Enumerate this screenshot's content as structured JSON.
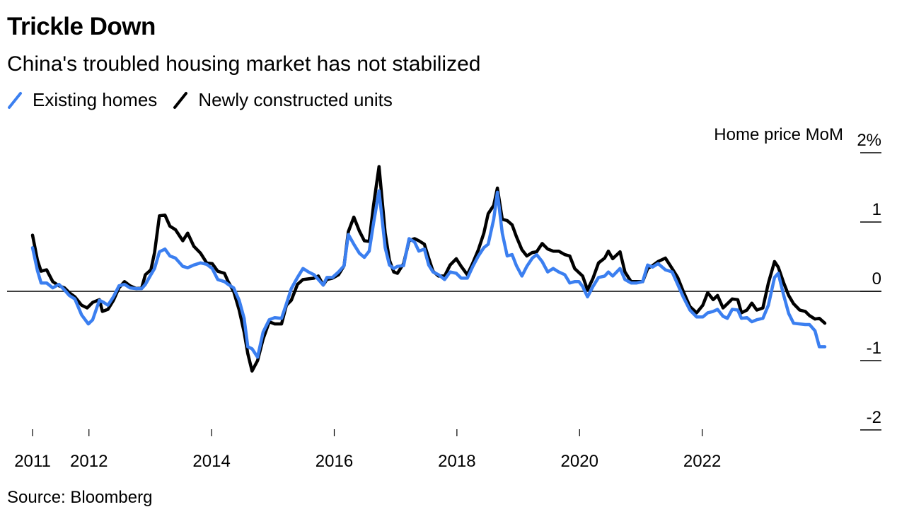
{
  "header": {
    "title": "Trickle Down",
    "subtitle": "China's troubled housing market has not stabilized"
  },
  "legend": [
    {
      "label": "Existing homes",
      "color": "#3b7ff0"
    },
    {
      "label": "Newly constructed units",
      "color": "#000000"
    }
  ],
  "footer": {
    "source": "Source: Bloomberg"
  },
  "chart_data": {
    "type": "line",
    "title": "Trickle Down",
    "subtitle": "China's troubled housing market has not stabilized",
    "ylabel": "Home price MoM",
    "y_unit_label": "Home price MoM 2%",
    "xlabel": "",
    "ylim": [
      -2,
      2
    ],
    "xlim": [
      2011.08,
      2024.0
    ],
    "y_ticks": [
      {
        "value": 2,
        "label": "2%"
      },
      {
        "value": 1,
        "label": "1"
      },
      {
        "value": 0,
        "label": "0"
      },
      {
        "value": -1,
        "label": "-1"
      },
      {
        "value": -2,
        "label": "-2"
      }
    ],
    "x_ticks": [
      {
        "value": 2011.08,
        "label": "2011"
      },
      {
        "value": 2012.0,
        "label": "2012"
      },
      {
        "value": 2014.0,
        "label": "2014"
      },
      {
        "value": 2016.0,
        "label": "2016"
      },
      {
        "value": 2018.0,
        "label": "2018"
      },
      {
        "value": 2020.0,
        "label": "2020"
      },
      {
        "value": 2022.0,
        "label": "2022"
      }
    ],
    "zero_line": true,
    "grid": false,
    "legend_position": "top-left",
    "y_axis_position": "right",
    "series": [
      {
        "name": "Existing homes",
        "color": "#3b7ff0",
        "x": [
          2011.08,
          2011.16,
          2011.22,
          2011.31,
          2011.41,
          2011.51,
          2011.6,
          2011.68,
          2011.77,
          2011.88,
          2011.99,
          2012.06,
          2012.17,
          2012.24,
          2012.31,
          2012.4,
          2012.49,
          2012.58,
          2012.67,
          2012.77,
          2012.86,
          2012.92,
          2013.01,
          2013.07,
          2013.15,
          2013.24,
          2013.32,
          2013.41,
          2013.53,
          2013.61,
          2013.71,
          2013.82,
          2013.92,
          2014.01,
          2014.1,
          2014.21,
          2014.27,
          2014.36,
          2014.45,
          2014.53,
          2014.59,
          2014.66,
          2014.75,
          2014.84,
          2014.94,
          2015.03,
          2015.14,
          2015.22,
          2015.3,
          2015.4,
          2015.49,
          2015.58,
          2015.67,
          2015.74,
          2015.82,
          2015.88,
          2015.97,
          2016.07,
          2016.16,
          2016.23,
          2016.32,
          2016.41,
          2016.49,
          2016.57,
          2016.64,
          2016.73,
          2016.83,
          2016.9,
          2016.97,
          2017.03,
          2017.13,
          2017.22,
          2017.31,
          2017.38,
          2017.47,
          2017.54,
          2017.61,
          2017.7,
          2017.8,
          2017.89,
          2017.99,
          2018.07,
          2018.17,
          2018.26,
          2018.35,
          2018.44,
          2018.51,
          2018.6,
          2018.66,
          2018.74,
          2018.82,
          2018.9,
          2018.97,
          2019.06,
          2019.14,
          2019.23,
          2019.3,
          2019.39,
          2019.48,
          2019.57,
          2019.66,
          2019.76,
          2019.84,
          2019.92,
          2019.99,
          2020.05,
          2020.13,
          2020.22,
          2020.31,
          2020.41,
          2020.47,
          2020.54,
          2020.66,
          2020.74,
          2020.84,
          2020.93,
          2021.03,
          2021.11,
          2021.19,
          2021.28,
          2021.4,
          2021.51,
          2021.6,
          2021.69,
          2021.8,
          2021.91,
          2022.01,
          2022.09,
          2022.18,
          2022.25,
          2022.34,
          2022.41,
          2022.49,
          2022.58,
          2022.64,
          2022.73,
          2022.81,
          2022.89,
          2022.99,
          2023.08,
          2023.18,
          2023.24,
          2023.33,
          2023.41,
          2023.49,
          2023.59,
          2023.68,
          2023.75,
          2023.84,
          2023.91,
          2024.0
        ],
        "values": [
          0.63,
          0.3,
          0.12,
          0.12,
          0.05,
          0.1,
          0.02,
          -0.06,
          -0.11,
          -0.34,
          -0.47,
          -0.41,
          -0.13,
          -0.16,
          -0.2,
          -0.08,
          0.08,
          0.1,
          0.05,
          0.04,
          0.04,
          0.1,
          0.24,
          0.33,
          0.57,
          0.61,
          0.51,
          0.48,
          0.36,
          0.34,
          0.38,
          0.41,
          0.39,
          0.33,
          0.17,
          0.14,
          0.1,
          0.05,
          -0.13,
          -0.39,
          -0.8,
          -0.83,
          -0.95,
          -0.59,
          -0.41,
          -0.38,
          -0.39,
          -0.18,
          0.04,
          0.2,
          0.33,
          0.28,
          0.24,
          0.17,
          0.09,
          0.2,
          0.2,
          0.28,
          0.37,
          0.82,
          0.68,
          0.55,
          0.49,
          0.58,
          0.98,
          1.45,
          0.63,
          0.38,
          0.33,
          0.36,
          0.37,
          0.76,
          0.71,
          0.58,
          0.61,
          0.38,
          0.28,
          0.24,
          0.17,
          0.28,
          0.26,
          0.19,
          0.19,
          0.36,
          0.51,
          0.63,
          0.68,
          1.04,
          1.43,
          0.84,
          0.51,
          0.53,
          0.37,
          0.22,
          0.36,
          0.48,
          0.53,
          0.43,
          0.28,
          0.33,
          0.28,
          0.24,
          0.12,
          0.14,
          0.14,
          0.07,
          -0.08,
          0.07,
          0.2,
          0.22,
          0.28,
          0.22,
          0.33,
          0.17,
          0.12,
          0.12,
          0.14,
          0.38,
          0.35,
          0.4,
          0.31,
          0.28,
          0.1,
          -0.08,
          -0.27,
          -0.37,
          -0.37,
          -0.31,
          -0.29,
          -0.26,
          -0.36,
          -0.39,
          -0.26,
          -0.27,
          -0.39,
          -0.38,
          -0.44,
          -0.41,
          -0.39,
          -0.2,
          0.2,
          0.26,
          -0.06,
          -0.32,
          -0.46,
          -0.47,
          -0.48,
          -0.48,
          -0.57,
          -0.8,
          -0.8
        ]
      },
      {
        "name": "Newly constructed units",
        "color": "#000000",
        "x": [
          2011.08,
          2011.16,
          2011.22,
          2011.31,
          2011.41,
          2011.51,
          2011.6,
          2011.68,
          2011.77,
          2011.88,
          2011.97,
          2012.06,
          2012.17,
          2012.22,
          2012.31,
          2012.4,
          2012.49,
          2012.58,
          2012.67,
          2012.77,
          2012.86,
          2012.92,
          2013.01,
          2013.07,
          2013.15,
          2013.24,
          2013.32,
          2013.41,
          2013.53,
          2013.61,
          2013.71,
          2013.82,
          2013.92,
          2014.01,
          2014.1,
          2014.21,
          2014.27,
          2014.36,
          2014.45,
          2014.53,
          2014.59,
          2014.66,
          2014.75,
          2014.84,
          2014.94,
          2015.03,
          2015.14,
          2015.22,
          2015.3,
          2015.4,
          2015.49,
          2015.58,
          2015.67,
          2015.74,
          2015.82,
          2015.88,
          2015.97,
          2016.07,
          2016.16,
          2016.23,
          2016.32,
          2016.41,
          2016.49,
          2016.57,
          2016.64,
          2016.73,
          2016.83,
          2016.9,
          2016.97,
          2017.03,
          2017.13,
          2017.22,
          2017.31,
          2017.38,
          2017.47,
          2017.54,
          2017.61,
          2017.7,
          2017.8,
          2017.89,
          2017.99,
          2018.07,
          2018.17,
          2018.26,
          2018.35,
          2018.44,
          2018.51,
          2018.6,
          2018.66,
          2018.74,
          2018.82,
          2018.9,
          2018.97,
          2019.06,
          2019.14,
          2019.23,
          2019.3,
          2019.39,
          2019.48,
          2019.57,
          2019.66,
          2019.76,
          2019.84,
          2019.92,
          2019.99,
          2020.05,
          2020.13,
          2020.22,
          2020.31,
          2020.41,
          2020.47,
          2020.54,
          2020.66,
          2020.74,
          2020.84,
          2020.93,
          2021.03,
          2021.11,
          2021.19,
          2021.28,
          2021.4,
          2021.51,
          2021.6,
          2021.69,
          2021.8,
          2021.91,
          2022.01,
          2022.09,
          2022.18,
          2022.25,
          2022.34,
          2022.41,
          2022.49,
          2022.58,
          2022.64,
          2022.73,
          2022.81,
          2022.89,
          2022.99,
          2023.08,
          2023.18,
          2023.24,
          2023.33,
          2023.41,
          2023.49,
          2023.59,
          2023.68,
          2023.75,
          2023.84,
          2023.91,
          2024.0
        ],
        "values": [
          0.81,
          0.45,
          0.29,
          0.31,
          0.14,
          0.08,
          0.05,
          -0.02,
          -0.08,
          -0.2,
          -0.24,
          -0.16,
          -0.12,
          -0.29,
          -0.26,
          -0.13,
          0.05,
          0.14,
          0.08,
          0.04,
          0.05,
          0.24,
          0.31,
          0.56,
          1.09,
          1.1,
          0.94,
          0.89,
          0.73,
          0.84,
          0.65,
          0.55,
          0.41,
          0.4,
          0.29,
          0.26,
          0.14,
          0.0,
          -0.27,
          -0.59,
          -0.9,
          -1.15,
          -1.0,
          -0.69,
          -0.44,
          -0.47,
          -0.47,
          -0.2,
          -0.13,
          0.1,
          0.17,
          0.18,
          0.19,
          0.22,
          0.09,
          0.17,
          0.19,
          0.24,
          0.37,
          0.86,
          1.07,
          0.87,
          0.73,
          0.72,
          1.24,
          1.8,
          0.84,
          0.45,
          0.28,
          0.26,
          0.4,
          0.73,
          0.76,
          0.73,
          0.68,
          0.48,
          0.29,
          0.22,
          0.22,
          0.38,
          0.47,
          0.36,
          0.24,
          0.41,
          0.6,
          0.84,
          1.12,
          1.24,
          1.49,
          1.04,
          1.02,
          0.96,
          0.79,
          0.6,
          0.51,
          0.56,
          0.57,
          0.69,
          0.61,
          0.58,
          0.58,
          0.53,
          0.51,
          0.33,
          0.27,
          0.22,
          0.02,
          0.19,
          0.41,
          0.48,
          0.58,
          0.47,
          0.57,
          0.28,
          0.14,
          0.14,
          0.14,
          0.33,
          0.37,
          0.43,
          0.48,
          0.33,
          0.2,
          0.0,
          -0.22,
          -0.31,
          -0.2,
          -0.02,
          -0.12,
          -0.06,
          -0.24,
          -0.18,
          -0.11,
          -0.12,
          -0.31,
          -0.27,
          -0.17,
          -0.27,
          -0.24,
          0.12,
          0.43,
          0.35,
          0.12,
          -0.06,
          -0.18,
          -0.27,
          -0.29,
          -0.35,
          -0.4,
          -0.39,
          -0.46
        ]
      }
    ]
  }
}
